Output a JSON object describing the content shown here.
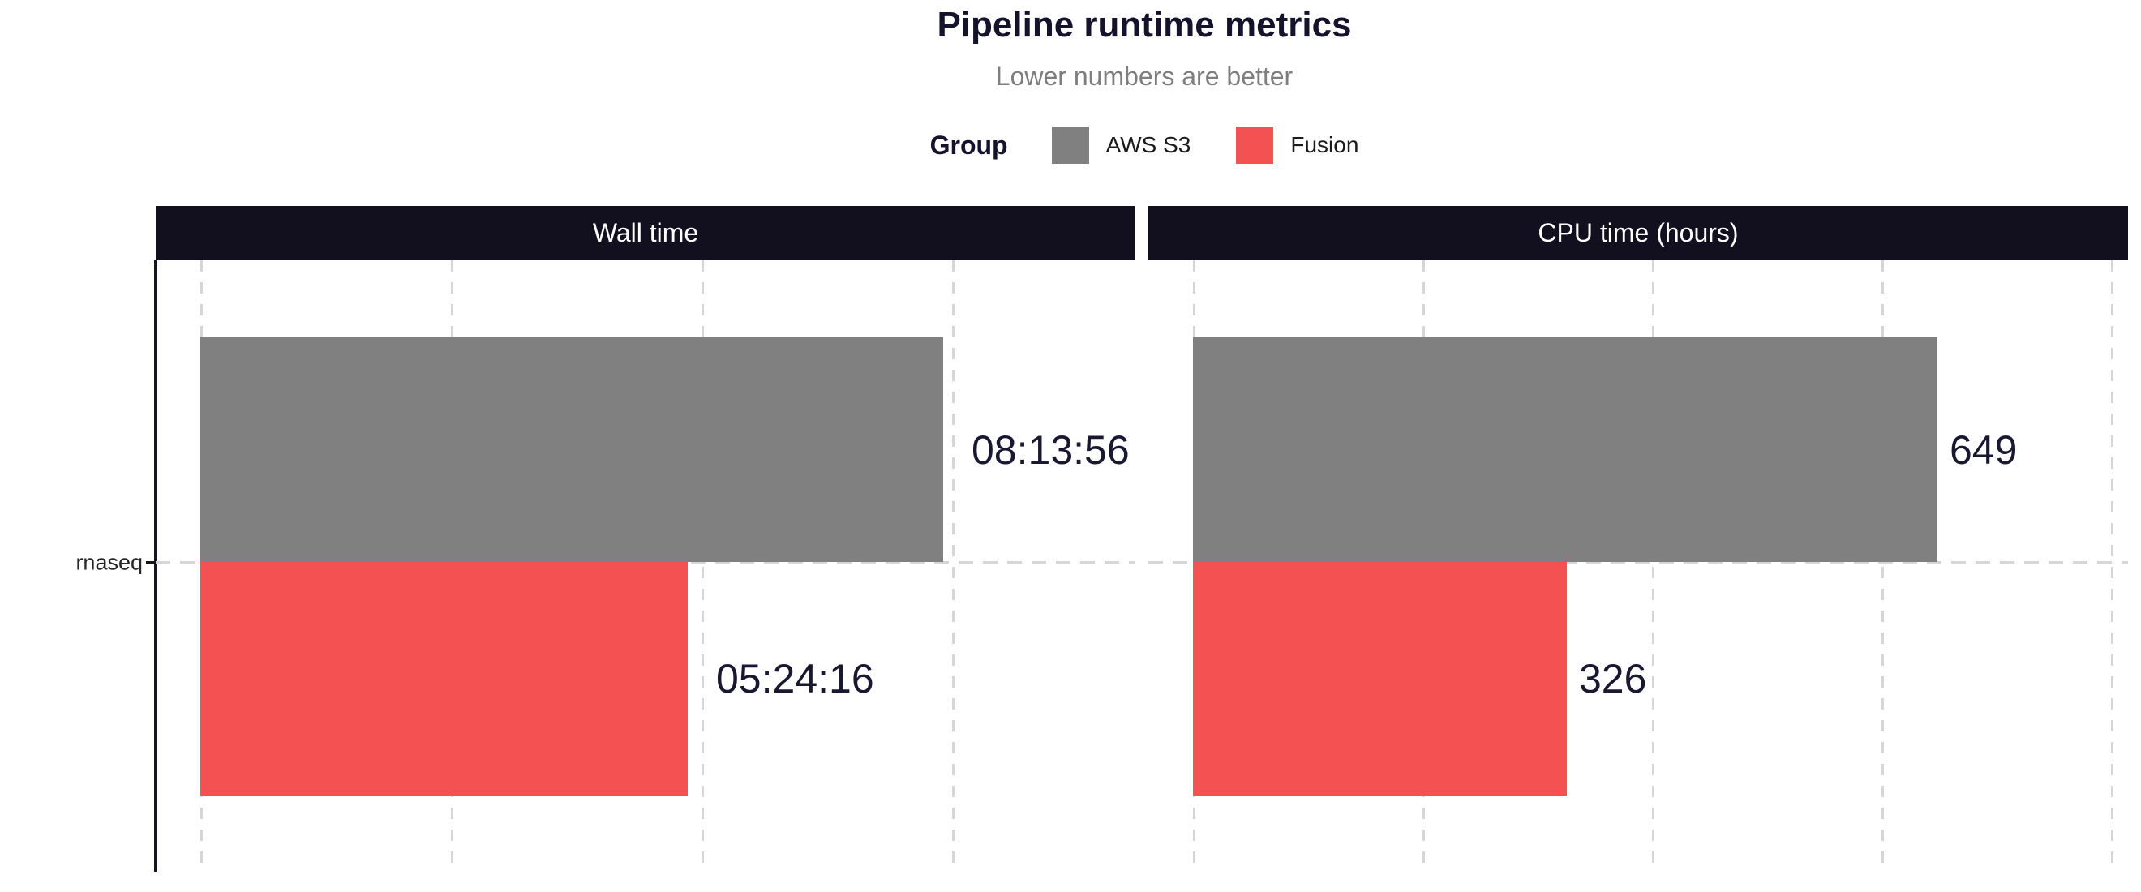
{
  "chart_data": {
    "type": "bar",
    "orientation": "horizontal",
    "title": "Pipeline runtime metrics",
    "subtitle": "Lower numbers are better",
    "category": "rnaseq",
    "legend": {
      "title": "Group",
      "position": "top"
    },
    "series": [
      {
        "name": "AWS S3",
        "color": "#808080"
      },
      {
        "name": "Fusion",
        "color": "#F45152"
      }
    ],
    "facets": [
      {
        "label": "Wall time",
        "unit": "seconds",
        "xlim": [
          0,
          37300
        ],
        "gridline_values": [
          0,
          10000,
          20000,
          30000
        ],
        "grid": true,
        "bars": [
          {
            "series": "AWS S3",
            "value": 29636,
            "label": "08:13:56"
          },
          {
            "series": "Fusion",
            "value": 19456,
            "label": "05:24:16"
          }
        ]
      },
      {
        "label": "CPU time (hours)",
        "unit": "hours",
        "xlim": [
          0,
          815
        ],
        "gridline_values": [
          0,
          200,
          400,
          600,
          800
        ],
        "grid": true,
        "bars": [
          {
            "series": "AWS S3",
            "value": 649,
            "label": "649"
          },
          {
            "series": "Fusion",
            "value": 326,
            "label": "326"
          }
        ]
      }
    ],
    "style_colors": {
      "strip_bg": "#120F1E",
      "strip_text": "#FFFFFF",
      "grid": "#D6D6D6",
      "axis": "#17141F",
      "title_text": "#15122B",
      "subtitle_text": "#7E7E7E",
      "legend_text": "#1A1A1A",
      "bar_label_text": "#1A1830",
      "axis_label_text": "#262626"
    }
  }
}
